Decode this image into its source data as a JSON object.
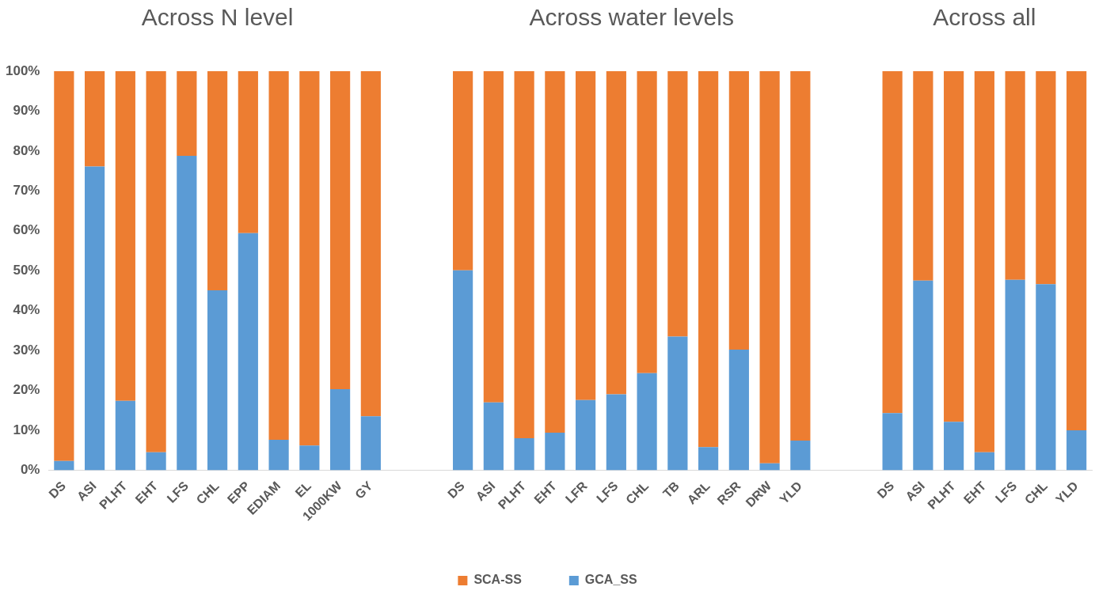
{
  "chart_data": {
    "type": "bar",
    "stacked": true,
    "legend": "bottom",
    "annotations": [
      "Across N level",
      "Across water levels",
      "Across all"
    ],
    "categories": [
      "DS",
      "ASI",
      "PLHT",
      "EHT",
      "LFS",
      "CHL",
      "EPP",
      "EDIAM",
      "EL",
      "1000KW",
      "GY",
      null,
      null,
      "DS",
      "ASI",
      "PLHT",
      "EHT",
      "LFR",
      "LFS",
      "CHL",
      "TB",
      "ARL",
      "RSR",
      "DRW",
      "YLD",
      null,
      null,
      "DS",
      "ASI",
      "PLHT",
      "EHT",
      "LFS",
      "CHL",
      "YLD"
    ],
    "series": [
      {
        "name": "GCA_SS",
        "color": "#5b9bd5",
        "values": [
          2.3,
          76.1,
          17.4,
          4.5,
          78.8,
          45.1,
          59.4,
          7.6,
          6.2,
          20.3,
          13.5,
          null,
          null,
          50.1,
          17.0,
          8.0,
          9.4,
          17.6,
          19.0,
          24.3,
          33.5,
          5.8,
          30.2,
          1.7,
          7.4,
          null,
          null,
          14.3,
          47.5,
          12.1,
          4.5,
          47.7,
          46.6,
          10.0
        ]
      },
      {
        "name": "SCA-SS",
        "color": "#ed7d31",
        "values": [
          97.7,
          23.9,
          82.6,
          95.5,
          21.2,
          54.9,
          40.6,
          92.4,
          93.8,
          79.7,
          86.5,
          null,
          null,
          49.9,
          83.0,
          92.0,
          90.6,
          82.4,
          81.0,
          75.7,
          66.5,
          94.2,
          69.8,
          98.3,
          92.6,
          null,
          null,
          85.7,
          52.5,
          87.9,
          95.5,
          52.3,
          53.4,
          90.0
        ]
      }
    ],
    "ylim": [
      0,
      100
    ],
    "yticks": [
      {
        "value": 0,
        "label": "0%"
      },
      {
        "value": 10,
        "label": "10%"
      },
      {
        "value": 20,
        "label": "20%"
      },
      {
        "value": 30,
        "label": "30%"
      },
      {
        "value": 40,
        "label": "40%"
      },
      {
        "value": 50,
        "label": "50%"
      },
      {
        "value": 60,
        "label": "60%"
      },
      {
        "value": 70,
        "label": "70%"
      },
      {
        "value": 80,
        "label": "80%"
      },
      {
        "value": 90,
        "label": "90%"
      },
      {
        "value": 100,
        "label": "100%"
      }
    ]
  }
}
